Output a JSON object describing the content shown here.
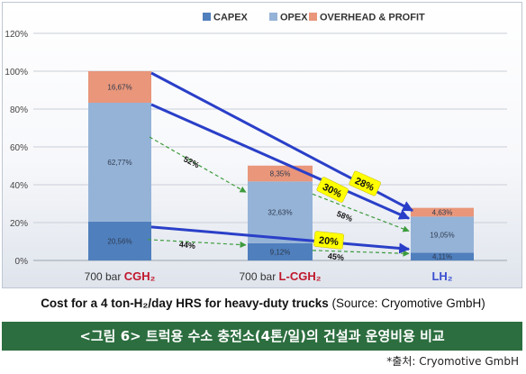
{
  "chart_data": {
    "type": "bar",
    "stacked": true,
    "legend": {
      "position": "top",
      "entries": [
        "CAPEX",
        "OPEX",
        "OVERHEAD & PROFIT"
      ]
    },
    "colors": {
      "CAPEX": "#4f7fbd",
      "OPEX": "#95b3d7",
      "OVERHEAD & PROFIT": "#e9967a",
      "arrow_blue": "#2a3fc8",
      "arrow_green": "#3d9b3d",
      "callout": "#ffff00"
    },
    "categories": [
      {
        "prefix": "700 bar ",
        "name": "CGH₂"
      },
      {
        "prefix": "700 bar ",
        "name": "L-CGH₂"
      },
      {
        "prefix": "",
        "name": "LH₂"
      }
    ],
    "series": [
      {
        "name": "CAPEX",
        "values": [
          20.56,
          9.12,
          4.11
        ],
        "labels": [
          "20,56%",
          "9,12%",
          "4,11%"
        ]
      },
      {
        "name": "OPEX",
        "values": [
          62.77,
          32.63,
          19.05
        ],
        "labels": [
          "62,77%",
          "32,63%",
          "19,05%"
        ]
      },
      {
        "name": "OVERHEAD & PROFIT",
        "values": [
          16.67,
          8.35,
          4.63
        ],
        "labels": [
          "16,67%",
          "8,35%",
          "4,63%"
        ]
      }
    ],
    "yticks": [
      "0%",
      "20%",
      "40%",
      "60%",
      "80%",
      "100%",
      "120%"
    ],
    "ylim": [
      0,
      120
    ],
    "grid": true,
    "arrow_labels": [
      {
        "text": "52%",
        "color": "green",
        "highlight": false
      },
      {
        "text": "58%",
        "color": "green",
        "highlight": false
      },
      {
        "text": "44%",
        "color": "green",
        "highlight": false
      },
      {
        "text": "45%",
        "color": "green",
        "highlight": false
      },
      {
        "text": "28%",
        "color": "blue",
        "highlight": true
      },
      {
        "text": "30%",
        "color": "blue",
        "highlight": true
      },
      {
        "text": "20%",
        "color": "blue",
        "highlight": true
      }
    ]
  },
  "caption": {
    "bold": "Cost for a 4 ton-H₂/day HRS for heavy-duty trucks",
    "normal": " (Source: Cryomotive GmbH)"
  },
  "banner": "<그림 6> 트럭용 수소 충전소(4톤/일)의 건설과 운영비용 비교",
  "source": "*출처: Cryomotive GmbH"
}
